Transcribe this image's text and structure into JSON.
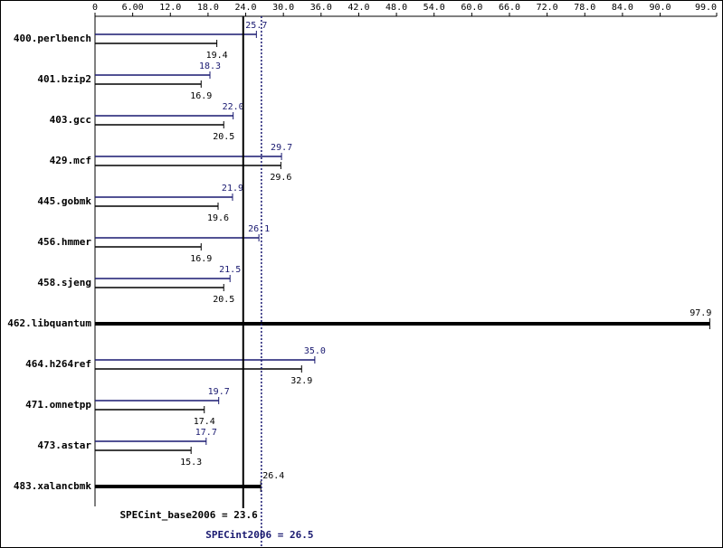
{
  "chart_data": {
    "type": "bar",
    "categories": [
      "400.perlbench",
      "401.bzip2",
      "403.gcc",
      "429.mcf",
      "445.gobmk",
      "456.hmmer",
      "458.sjeng",
      "462.libquantum",
      "464.h264ref",
      "471.omnetpp",
      "473.astar",
      "483.xalancbmk"
    ],
    "series": [
      {
        "color": "#191970",
        "values": [
          25.7,
          18.3,
          22.0,
          29.7,
          21.9,
          26.1,
          21.5,
          null,
          35.0,
          19.7,
          17.7,
          null
        ],
        "value_labels": [
          "25.7",
          "18.3",
          "22.0",
          "29.7",
          "21.9",
          "26.1",
          "21.5",
          null,
          "35.0",
          "19.7",
          "17.7",
          null
        ]
      },
      {
        "color": "#000000",
        "values": [
          19.4,
          16.9,
          20.5,
          29.6,
          19.6,
          16.9,
          20.5,
          97.9,
          32.9,
          17.4,
          15.3,
          26.4
        ]
      }
    ],
    "xlim": [
      0,
      99
    ],
    "xticks": [
      0,
      {
        "value": 6,
        "label": "6.00"
      },
      {
        "value": 12,
        "label": "12.0"
      },
      {
        "value": 18,
        "label": "18.0"
      },
      {
        "value": 24,
        "label": "24.0"
      },
      {
        "value": 30,
        "label": "30.0"
      },
      {
        "value": 36,
        "label": "36.0"
      },
      {
        "value": 42,
        "label": "42.0"
      },
      {
        "value": 48,
        "label": "48.0"
      },
      {
        "value": 54,
        "label": "54.0"
      },
      {
        "value": 60,
        "label": "60.0"
      },
      {
        "value": 66,
        "label": "66.0"
      },
      {
        "value": 72,
        "label": "72.0"
      },
      {
        "value": 78,
        "label": "78.0"
      },
      {
        "value": 84,
        "label": "84.0"
      },
      {
        "value": 90,
        "label": "90.0"
      },
      {
        "value": 99,
        "label": "99.0"
      }
    ],
    "base_line": {
      "value": 23.6,
      "label": "SPECint_base2006 = 23.6",
      "color": "#000000"
    },
    "peak_line": {
      "value": 26.5,
      "label": "SPECint2006 = 26.5",
      "color": "#191970"
    }
  }
}
